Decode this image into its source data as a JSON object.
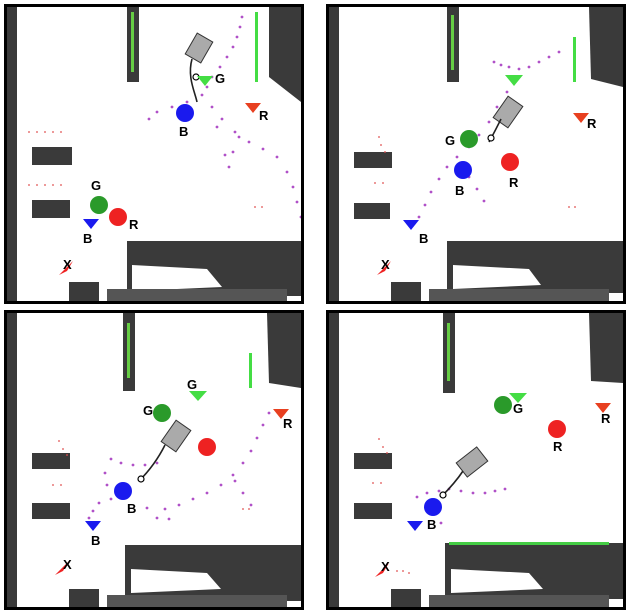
{
  "labels": {
    "green_ball": "G",
    "blue_ball": "B",
    "red_ball": "R",
    "green_goal": "G",
    "blue_goal": "B",
    "red_goal": "R",
    "start_marker": "X"
  },
  "colors": {
    "green": "#2a9a2a",
    "green_goal": "#44dd44",
    "blue": "#1a1aee",
    "red": "#ee2222",
    "red_goal": "#e84020",
    "path": "#b050c8",
    "map_dark": "#3a3a3a",
    "robot": "#aaaaaa"
  },
  "panels": [
    {
      "id": "panel-1"
    },
    {
      "id": "panel-2"
    },
    {
      "id": "panel-3"
    },
    {
      "id": "panel-4"
    }
  ]
}
